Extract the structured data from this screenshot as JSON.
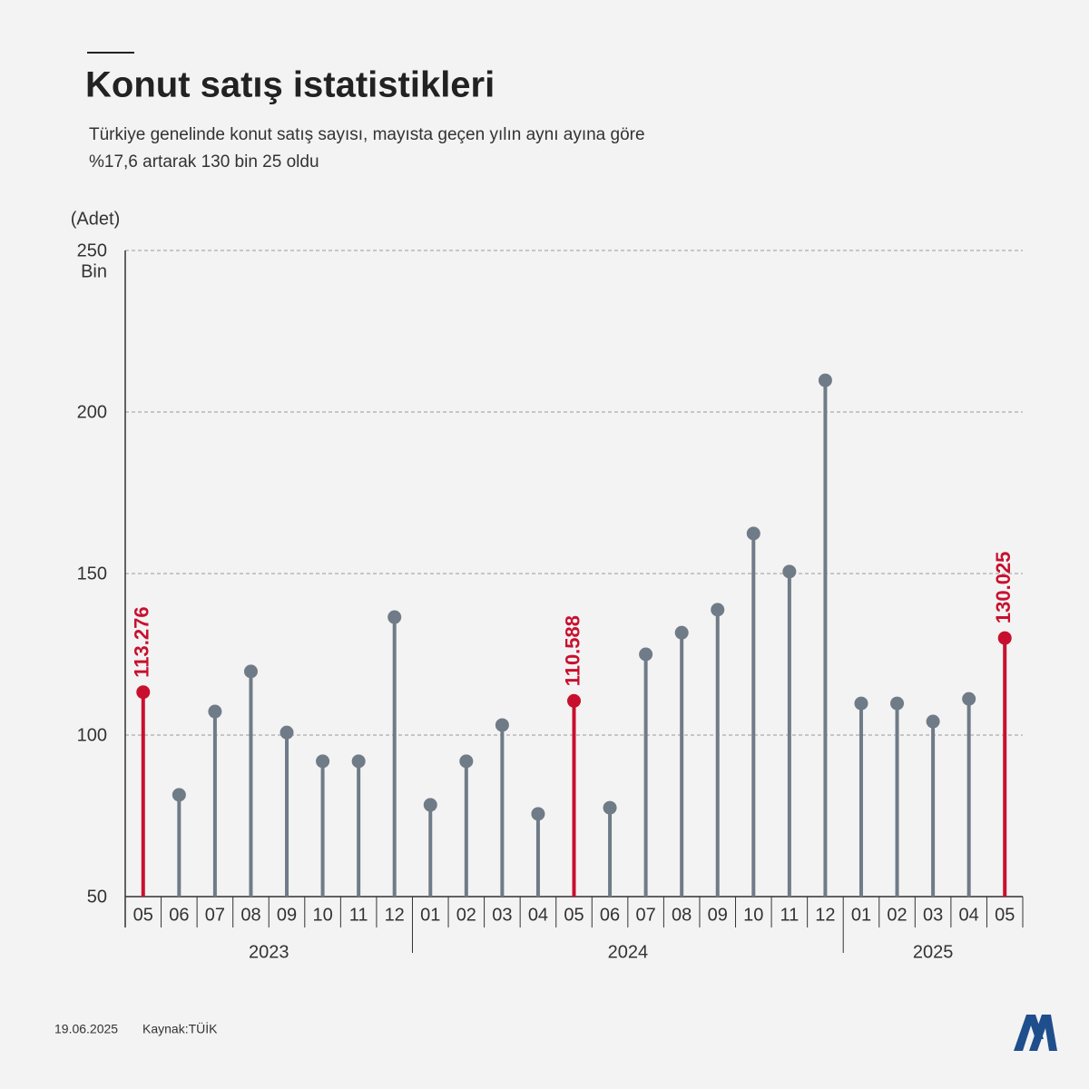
{
  "chart_data": {
    "type": "lollipop",
    "title": "Konut satış istatistikleri",
    "subtitle": [
      "Türkiye genelinde konut satış sayısı, mayısta geçen yılın aynı ayına göre",
      "%17,6 artarak 130 bin 25 oldu"
    ],
    "y_label": "(Adet)",
    "y_unit": "Bin",
    "groups": [
      {
        "name": "2023",
        "categories": [
          "05",
          "06",
          "07",
          "08",
          "09",
          "10",
          "11",
          "12"
        ]
      },
      {
        "name": "2024",
        "categories": [
          "01",
          "02",
          "03",
          "04",
          "05",
          "06",
          "07",
          "08",
          "09",
          "10",
          "11",
          "12"
        ]
      },
      {
        "name": "2025",
        "categories": [
          "01",
          "02",
          "03",
          "04",
          "05"
        ]
      }
    ],
    "values": [
      113.276,
      81.5,
      107.3,
      119.7,
      100.8,
      91.9,
      91.9,
      136.5,
      78.4,
      91.9,
      103.1,
      75.6,
      110.588,
      77.5,
      125,
      131.7,
      138.8,
      162.4,
      150.6,
      209.8,
      109.8,
      109.8,
      104.2,
      111.2,
      130.025
    ],
    "value_labels": [
      "113.276",
      null,
      null,
      null,
      null,
      null,
      null,
      null,
      null,
      null,
      null,
      null,
      "110.588",
      null,
      null,
      null,
      null,
      null,
      null,
      null,
      null,
      null,
      null,
      null,
      "130.025"
    ],
    "point_colors": [
      "#c8102e",
      "#6f7b87",
      "#6f7b87",
      "#6f7b87",
      "#6f7b87",
      "#6f7b87",
      "#6f7b87",
      "#6f7b87",
      "#6f7b87",
      "#6f7b87",
      "#6f7b87",
      "#6f7b87",
      "#c8102e",
      "#6f7b87",
      "#6f7b87",
      "#6f7b87",
      "#6f7b87",
      "#6f7b87",
      "#6f7b87",
      "#6f7b87",
      "#6f7b87",
      "#6f7b87",
      "#6f7b87",
      "#6f7b87",
      "#c8102e"
    ],
    "ylim": [
      50,
      250
    ],
    "yticks": [
      50,
      100,
      150,
      200,
      250
    ],
    "grid": true,
    "date": "19.06.2025",
    "source": "Kaynak:TÜİK"
  }
}
